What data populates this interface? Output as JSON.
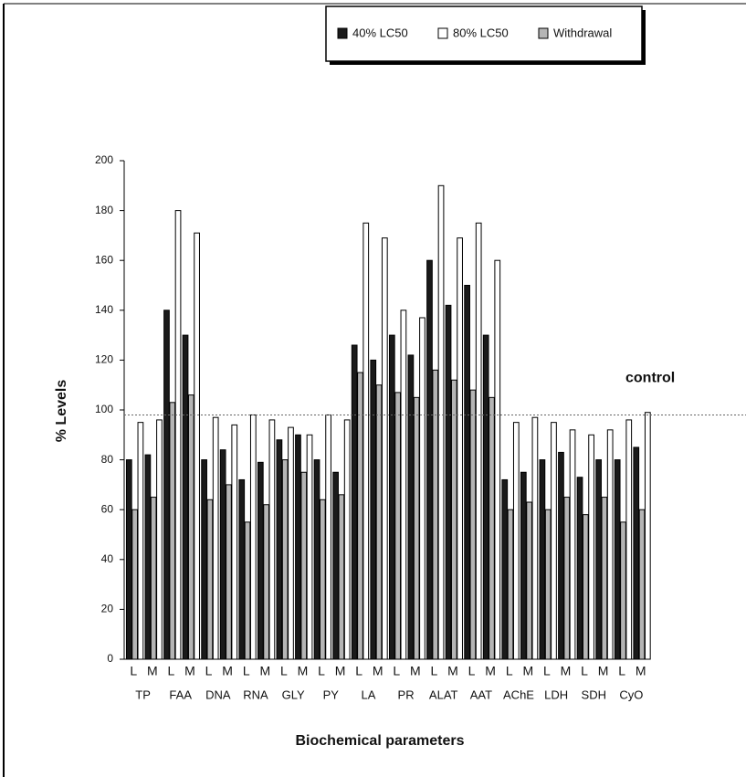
{
  "chart_data": {
    "type": "bar",
    "y_label": "% Levels",
    "x_label": "Biochemical parameters",
    "categories": [
      "L",
      "M",
      "L",
      "M",
      "L",
      "M",
      "L",
      "M",
      "L",
      "M",
      "L",
      "M",
      "L",
      "M",
      "L",
      "M",
      "L",
      "M",
      "L",
      "M",
      "L",
      "M",
      "L",
      "M",
      "L",
      "M",
      "L",
      "M"
    ],
    "groups": [
      "TP",
      "FAA",
      "DNA",
      "RNA",
      "GLY",
      "PY",
      "LA",
      "PR",
      "ALAT",
      "AAT",
      "AChE",
      "LDH",
      "SDH",
      "CyO"
    ],
    "series": [
      {
        "name": "40% LC50",
        "color": "#1a1a1a",
        "values": [
          80,
          82,
          140,
          130,
          80,
          84,
          72,
          79,
          88,
          90,
          80,
          75,
          126,
          120,
          130,
          122,
          160,
          142,
          150,
          130,
          72,
          75,
          80,
          83,
          73,
          80,
          80,
          85
        ]
      },
      {
        "name": "80% LC50",
        "color": "#ffffff",
        "values": [
          95,
          96,
          180,
          171,
          97,
          94,
          98,
          96,
          93,
          90,
          98,
          96,
          175,
          169,
          140,
          137,
          190,
          169,
          175,
          160,
          95,
          97,
          95,
          92,
          90,
          92,
          96,
          99
        ]
      },
      {
        "name": "Withdrawal",
        "color": "#b5b5b5",
        "values": [
          60,
          65,
          103,
          106,
          64,
          70,
          55,
          62,
          80,
          75,
          64,
          66,
          115,
          110,
          107,
          105,
          116,
          112,
          108,
          105,
          60,
          63,
          60,
          65,
          58,
          65,
          55,
          60
        ]
      }
    ],
    "ylim": [
      0,
      200
    ],
    "yticks": [
      0,
      20,
      40,
      60,
      80,
      100,
      120,
      140,
      160,
      180,
      200
    ],
    "reference_line": {
      "value": 98,
      "label": "control"
    }
  }
}
